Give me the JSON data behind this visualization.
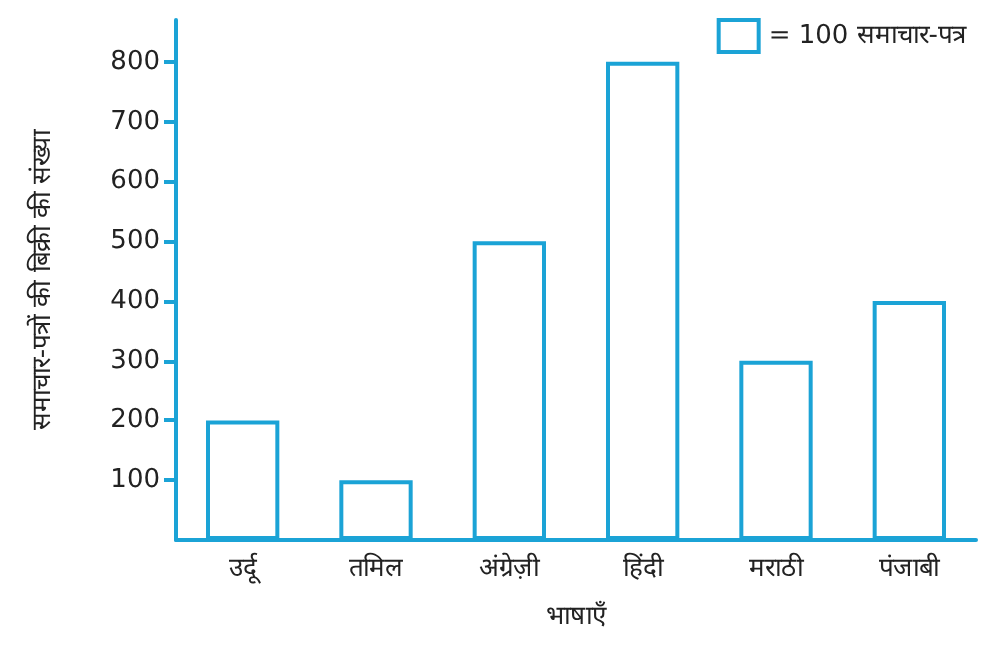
{
  "chart_data": {
    "type": "bar",
    "xlabel": "भाषाएँ",
    "ylabel": "समाचार-पत्रों की बिक्री की संख्या",
    "categories": [
      "उर्दू",
      "तमिल",
      "अंग्रेज़ी",
      "हिंदी",
      "मराठी",
      "पंजाबी"
    ],
    "series": [
      {
        "name": "= 100 समाचार-पत्र",
        "color": "#1ba3d6",
        "values": [
          200,
          100,
          500,
          800,
          300,
          400
        ]
      }
    ],
    "ylim": [
      0,
      870
    ],
    "yticks": [
      100,
      200,
      300,
      400,
      500,
      600,
      700,
      800
    ],
    "grid": false,
    "legend": "top right"
  }
}
